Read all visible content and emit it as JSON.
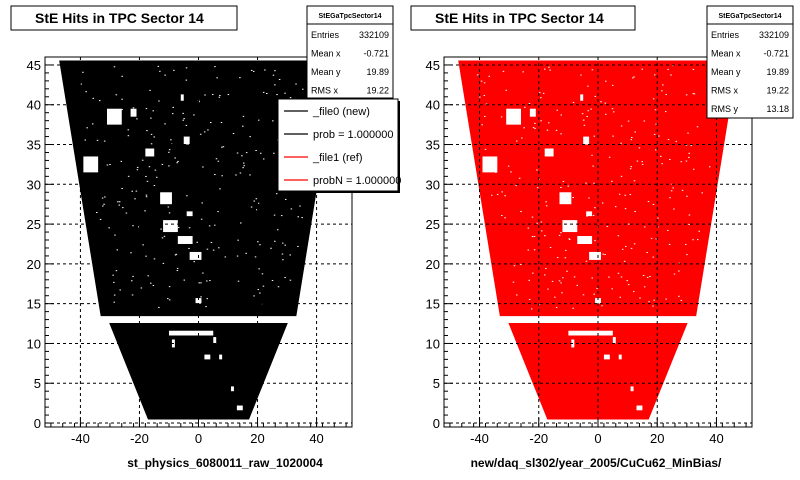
{
  "chart_data": [
    {
      "type": "scatter",
      "title": "StE Hits in TPC Sector 14",
      "xlabel": "st_physics_6080011_raw_1020004",
      "ylabel": "",
      "xlim": [
        -52,
        52
      ],
      "ylim": [
        -0.5,
        46
      ],
      "xticks": [
        -40,
        -20,
        0,
        20,
        40
      ],
      "yticks": [
        0,
        5,
        10,
        15,
        20,
        25,
        30,
        35,
        40,
        45
      ],
      "grid": true,
      "color": "#000000",
      "stats": {
        "name": "StEGaTpcSector14",
        "entries_label": "Entries",
        "entries": "332109",
        "meanx_label": "Mean x",
        "meanx": "-0.721",
        "meany_label": "Mean y",
        "meany": "19.89",
        "rmsx_label": "RMS x",
        "rmsx": "19.22"
      },
      "legend": {
        "placement": "right",
        "entries": [
          {
            "label": "_file0 (new)",
            "color": "#000000"
          },
          {
            "label": "prob = 1.000000",
            "color": "#000000"
          },
          {
            "label": "_file1 (ref)",
            "color": "#ff0000"
          },
          {
            "label": "probN = 1.000000",
            "color": "#ff0000"
          }
        ]
      },
      "data_region": {
        "outer_rows": {
          "y_range": [
            13.5,
            45.5
          ],
          "x_at_y_min": [
            -33,
            33
          ],
          "x_at_y_max": [
            -47,
            47
          ]
        },
        "inner_rows": {
          "y_range": [
            0.5,
            12.5
          ],
          "x_at_y_min": [
            -17,
            17
          ],
          "x_at_y_max": [
            -30,
            30
          ]
        }
      },
      "holes": [
        {
          "x": [
            -31,
            -26
          ],
          "y": [
            37.5,
            39.5
          ]
        },
        {
          "x": [
            -39,
            -34
          ],
          "y": [
            31.5,
            33.5
          ]
        },
        {
          "x": [
            -18,
            -15
          ],
          "y": [
            33.5,
            34.5
          ]
        },
        {
          "x": [
            -13,
            -9
          ],
          "y": [
            27.5,
            29
          ]
        },
        {
          "x": [
            -12,
            -7
          ],
          "y": [
            24,
            25.5
          ]
        },
        {
          "x": [
            -7,
            -2
          ],
          "y": [
            22.5,
            23.5
          ]
        },
        {
          "x": [
            -3,
            1
          ],
          "y": [
            20.5,
            21.5
          ]
        },
        {
          "x": [
            -1,
            1
          ],
          "y": [
            15,
            15.7
          ]
        },
        {
          "x": [
            -23,
            -21
          ],
          "y": [
            38.5,
            39.5
          ]
        },
        {
          "x": [
            -6,
            -5
          ],
          "y": [
            40.5,
            41.3
          ]
        },
        {
          "x": [
            -5,
            -3
          ],
          "y": [
            35,
            36
          ]
        },
        {
          "x": [
            -10,
            5
          ],
          "y": [
            11,
            11.6
          ]
        },
        {
          "x": [
            -9,
            -8
          ],
          "y": [
            9.5,
            10.5
          ]
        },
        {
          "x": [
            5,
            6
          ],
          "y": [
            10,
            10.8
          ]
        },
        {
          "x": [
            2,
            4
          ],
          "y": [
            8,
            8.6
          ]
        },
        {
          "x": [
            7,
            8
          ],
          "y": [
            8,
            8.6
          ]
        },
        {
          "x": [
            11,
            12
          ],
          "y": [
            4,
            4.6
          ]
        },
        {
          "x": [
            13,
            15
          ],
          "y": [
            1.6,
            2.2
          ]
        },
        {
          "x": [
            -4,
            -2
          ],
          "y": [
            26,
            26.6
          ]
        }
      ]
    },
    {
      "type": "scatter",
      "title": "StE Hits in TPC Sector 14",
      "xlabel": "new/daq_sl302/year_2005/CuCu62_MinBias/",
      "ylabel": "",
      "xlim": [
        -52,
        52
      ],
      "ylim": [
        -0.5,
        46
      ],
      "xticks": [
        -40,
        -20,
        0,
        20,
        40
      ],
      "yticks": [
        0,
        5,
        10,
        15,
        20,
        25,
        30,
        35,
        40,
        45
      ],
      "grid": true,
      "color": "#ff0000",
      "stats": {
        "name": "StEGaTpcSector14",
        "entries_label": "Entries",
        "entries": "332109",
        "meanx_label": "Mean x",
        "meanx": "-0.721",
        "meany_label": "Mean y",
        "meany": "19.89",
        "rmsx_label": "RMS x",
        "rmsx": "19.22",
        "rmsy_label": "RMS y",
        "rmsy": "13.18"
      },
      "data_region": {
        "outer_rows": {
          "y_range": [
            13.5,
            45.5
          ],
          "x_at_y_min": [
            -33,
            33
          ],
          "x_at_y_max": [
            -47,
            47
          ]
        },
        "inner_rows": {
          "y_range": [
            0.5,
            12.5
          ],
          "x_at_y_min": [
            -17,
            17
          ],
          "x_at_y_max": [
            -30,
            30
          ]
        }
      },
      "holes": [
        {
          "x": [
            -31,
            -26
          ],
          "y": [
            37.5,
            39.5
          ]
        },
        {
          "x": [
            -39,
            -34
          ],
          "y": [
            31.5,
            33.5
          ]
        },
        {
          "x": [
            -18,
            -15
          ],
          "y": [
            33.5,
            34.5
          ]
        },
        {
          "x": [
            -13,
            -9
          ],
          "y": [
            27.5,
            29
          ]
        },
        {
          "x": [
            -12,
            -7
          ],
          "y": [
            24,
            25.5
          ]
        },
        {
          "x": [
            -7,
            -2
          ],
          "y": [
            22.5,
            23.5
          ]
        },
        {
          "x": [
            -3,
            1
          ],
          "y": [
            20.5,
            21.5
          ]
        },
        {
          "x": [
            -1,
            1
          ],
          "y": [
            15,
            15.7
          ]
        },
        {
          "x": [
            -23,
            -21
          ],
          "y": [
            38.5,
            39.5
          ]
        },
        {
          "x": [
            -6,
            -5
          ],
          "y": [
            40.5,
            41.3
          ]
        },
        {
          "x": [
            -5,
            -3
          ],
          "y": [
            35,
            36
          ]
        },
        {
          "x": [
            -10,
            5
          ],
          "y": [
            11,
            11.6
          ]
        },
        {
          "x": [
            -9,
            -8
          ],
          "y": [
            9.5,
            10.5
          ]
        },
        {
          "x": [
            5,
            6
          ],
          "y": [
            10,
            10.8
          ]
        },
        {
          "x": [
            2,
            4
          ],
          "y": [
            8,
            8.6
          ]
        },
        {
          "x": [
            7,
            8
          ],
          "y": [
            8,
            8.6
          ]
        },
        {
          "x": [
            11,
            12
          ],
          "y": [
            4,
            4.6
          ]
        },
        {
          "x": [
            13,
            15
          ],
          "y": [
            1.6,
            2.2
          ]
        },
        {
          "x": [
            -4,
            -2
          ],
          "y": [
            26,
            26.6
          ]
        }
      ]
    }
  ]
}
